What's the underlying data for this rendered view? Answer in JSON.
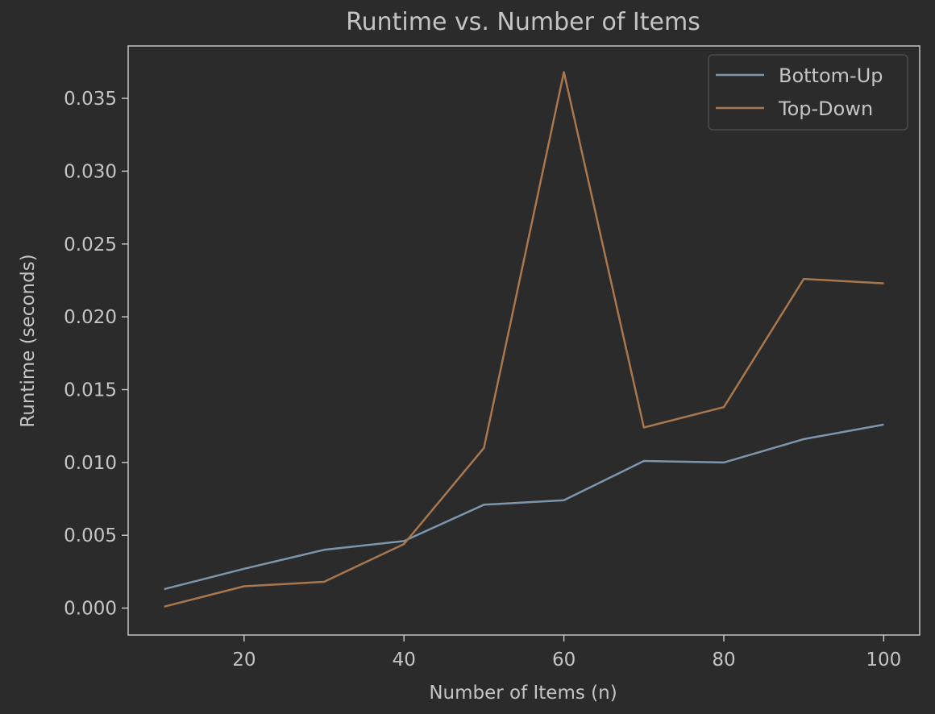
{
  "chart_data": {
    "type": "line",
    "title": "Runtime vs. Number of Items",
    "xlabel": "Number of Items (n)",
    "ylabel": "Runtime (seconds)",
    "x": [
      10,
      20,
      30,
      40,
      50,
      60,
      70,
      80,
      90,
      100
    ],
    "xlim": [
      5.5,
      104.5
    ],
    "ylim": [
      -0.00185,
      0.0386
    ],
    "xticks": [
      20,
      40,
      60,
      80,
      100
    ],
    "xtick_labels": [
      "20",
      "40",
      "60",
      "80",
      "100"
    ],
    "yticks": [
      0.0,
      0.005,
      0.01,
      0.015,
      0.02,
      0.025,
      0.03,
      0.035
    ],
    "ytick_labels": [
      "0.000",
      "0.005",
      "0.010",
      "0.015",
      "0.020",
      "0.025",
      "0.030",
      "0.035"
    ],
    "grid": false,
    "legend_position": "top-right",
    "series": [
      {
        "name": "Bottom-Up",
        "color": "#7d95ad",
        "values": [
          0.0013,
          0.0027,
          0.004,
          0.0046,
          0.0071,
          0.0074,
          0.0101,
          0.01,
          0.0116,
          0.0126
        ]
      },
      {
        "name": "Top-Down",
        "color": "#a8774e",
        "values": [
          0.0001,
          0.0015,
          0.0018,
          0.0044,
          0.011,
          0.0368,
          0.0124,
          0.0138,
          0.0226,
          0.0223
        ]
      }
    ],
    "colors": {
      "background": "#2b2b2b",
      "axes_edge": "#c4c4c4",
      "text": "#c4c4c4",
      "legend_edge": "#4a4a4a"
    }
  }
}
